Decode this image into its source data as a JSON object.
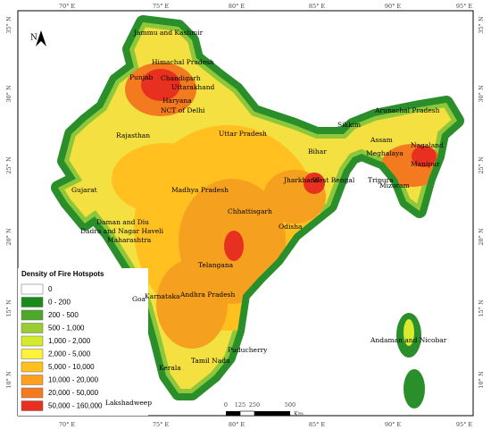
{
  "north": "N",
  "lon_ticks": [
    "70° E",
    "75° E",
    "80° E",
    "85° E",
    "90° E",
    "95° E"
  ],
  "lat_ticks": [
    "35° N",
    "30° N",
    "25° N",
    "20° N",
    "15° N",
    "10° N"
  ],
  "legend": {
    "title": "Density of Fire Hotspots",
    "items": [
      {
        "label": "0",
        "color": "#ffffff"
      },
      {
        "label": "0 - 200",
        "color": "#1a8a1a"
      },
      {
        "label": "200 - 500",
        "color": "#4da82a"
      },
      {
        "label": "500 - 1,000",
        "color": "#9acd32"
      },
      {
        "label": "1,000 - 2,000",
        "color": "#d4ea2a"
      },
      {
        "label": "2,000 - 5,000",
        "color": "#fff23a"
      },
      {
        "label": "5,000 - 10,000",
        "color": "#ffc020"
      },
      {
        "label": "10,000 - 20,000",
        "color": "#ffa020"
      },
      {
        "label": "20,000 - 50,000",
        "color": "#f47a20"
      },
      {
        "label": "50,000 - 160,000",
        "color": "#e83020"
      }
    ]
  },
  "scale": {
    "labels": [
      "0",
      "125",
      "250",
      "500"
    ],
    "unit": "Km"
  },
  "places": [
    "Jammu and Kashmir",
    "Himachal Pradesh",
    "Punjab",
    "Chandigarh",
    "Uttarakhand",
    "Haryana",
    "NCT of Delhi",
    "Rajasthan",
    "Uttar Pradesh",
    "Arunachal Pradesh",
    "Sikkim",
    "Assam",
    "Nagaland",
    "Meghalaya",
    "Manipur",
    "Bihar",
    "Jharkhand",
    "West Bengal",
    "Tripura",
    "Mizoram",
    "Gujarat",
    "Madhya Pradesh",
    "Chhattisgarh",
    "Odisha",
    "Daman and Diu",
    "Dadra and Nagar Haveli",
    "Maharashtra",
    "Telangana",
    "Goa",
    "Karnataka",
    "Andhra Pradesh",
    "Andaman and Nicobar",
    "Puducherry",
    "Tamil Nadu",
    "Kerala",
    "Lakshadweep"
  ]
}
